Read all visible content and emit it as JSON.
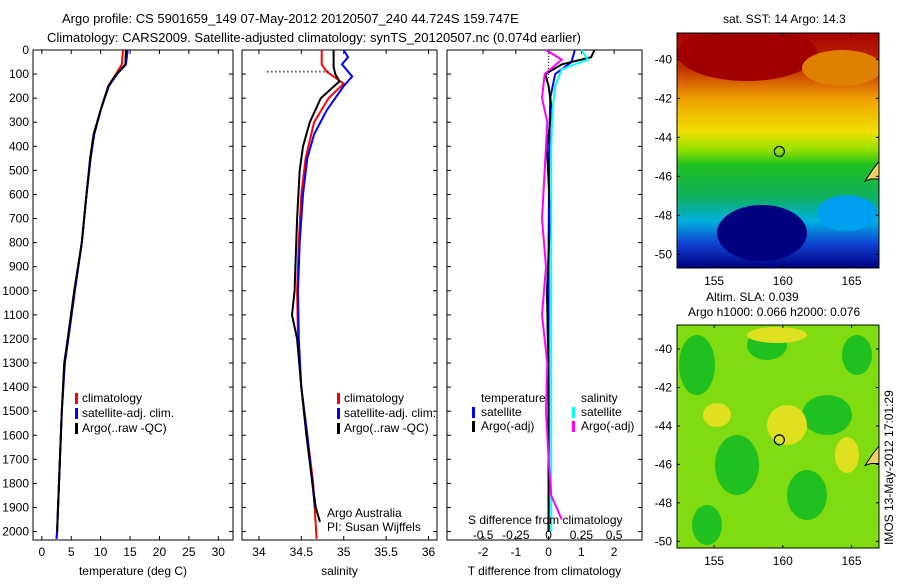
{
  "title_line1": "Argo profile: CS 5901659_149 07-May-2012 20120507_240 44.724S 159.747E",
  "title_line2": "Climatology: CARS2009. Satellite-adjusted climatology: synTS_20120507.nc (0.074d earlier)",
  "footer_stamp": "IMOS 13-May-2012 17:01:29",
  "colors": {
    "climatology": "#ff0000",
    "satellite": "#0000ff",
    "argo": "#000000",
    "sal_sat": "#00ffff",
    "sal_argo": "#ff00ff"
  },
  "chart_data": [
    {
      "type": "line",
      "name": "temperature",
      "xlabel": "temperature (deg C)",
      "xlim": [
        -1.5,
        32.5
      ],
      "ylim": [
        0,
        2035
      ],
      "xticks": [
        0,
        5,
        10,
        15,
        20,
        25,
        30
      ],
      "yticks": [
        0,
        100,
        200,
        300,
        400,
        500,
        600,
        700,
        800,
        900,
        1000,
        1100,
        1200,
        1300,
        1400,
        1500,
        1600,
        1700,
        1800,
        1900,
        2000
      ],
      "legend": [
        "climatology",
        "satellite-adj. clim.",
        "Argo(..raw -QC)"
      ],
      "series": [
        {
          "name": "climatology",
          "color": "#ff0000",
          "depth": [
            0,
            60,
            100,
            150,
            250,
            350,
            450,
            600,
            800,
            1000,
            1200,
            1300,
            1500,
            2000,
            2030
          ],
          "values": [
            13.8,
            13.6,
            12.6,
            11.3,
            10,
            8.9,
            8.3,
            7.6,
            6.8,
            5.6,
            4.5,
            3.9,
            3.4,
            2.6,
            2.5
          ]
        },
        {
          "name": "satellite-adj. clim.",
          "color": "#0000ff",
          "depth": [
            0,
            60,
            100,
            150,
            250,
            350,
            450,
            600,
            800,
            1000,
            1200,
            1300,
            1500,
            2000,
            2030
          ],
          "values": [
            14.6,
            14.3,
            12.8,
            11.4,
            10,
            8.9,
            8.3,
            7.6,
            6.8,
            5.6,
            4.5,
            3.9,
            3.4,
            2.6,
            2.5
          ]
        },
        {
          "name": "Argo(..raw -QC)",
          "color": "#000000",
          "depth": [
            0,
            60,
            100,
            150,
            250,
            350,
            450,
            600,
            800,
            1000,
            1200,
            1300,
            1500,
            2000
          ],
          "values": [
            14.3,
            14.2,
            12.7,
            11.3,
            10,
            8.8,
            8.2,
            7.6,
            6.8,
            5.5,
            4.4,
            3.8,
            3.4,
            2.6
          ]
        }
      ]
    },
    {
      "type": "line",
      "name": "salinity",
      "xlabel": "salinity",
      "xlim": [
        33.8,
        36.1
      ],
      "ylim": [
        0,
        2035
      ],
      "xticks": [
        34,
        34.5,
        35,
        35.5,
        36
      ],
      "legend": [
        "climatology",
        "satellite-adj. clim.",
        "Argo(..raw -QC)"
      ],
      "annotation": [
        "Argo Australia",
        "PI: Susan Wijffels"
      ],
      "series": [
        {
          "name": "climatology",
          "color": "#ff0000",
          "depth": [
            0,
            60,
            90,
            140,
            200,
            300,
            450,
            600,
            800,
            1000,
            1200,
            1400,
            1600,
            1800,
            2030
          ],
          "values": [
            34.74,
            34.74,
            34.8,
            35.0,
            34.82,
            34.65,
            34.55,
            34.5,
            34.47,
            34.45,
            34.46,
            34.5,
            34.57,
            34.64,
            34.68
          ]
        },
        {
          "name": "satellite-adj. clim.",
          "color": "#0000ff",
          "depth": [
            0,
            30,
            60,
            110,
            150,
            250,
            350,
            450,
            600,
            800,
            1000,
            1200,
            1400,
            1600,
            1800,
            1900
          ],
          "values": [
            35.0,
            35.05,
            34.98,
            35.1,
            35.0,
            34.8,
            34.65,
            34.57,
            34.52,
            34.48,
            34.46,
            34.47,
            34.5,
            34.57,
            34.63,
            34.66
          ]
        },
        {
          "name": "Argo(..raw -QC)",
          "color": "#000000",
          "depth": [
            0,
            70,
            100,
            130,
            200,
            300,
            400,
            500,
            700,
            900,
            1000,
            1100,
            1200,
            1400,
            1600,
            1800,
            1900,
            1960
          ],
          "values": [
            34.88,
            34.88,
            34.9,
            34.95,
            34.73,
            34.6,
            34.52,
            34.48,
            34.45,
            34.43,
            34.42,
            34.39,
            34.45,
            34.5,
            34.56,
            34.63,
            34.67,
            34.72
          ]
        }
      ]
    },
    {
      "type": "line",
      "name": "difference",
      "xlabel": "T difference from climatology",
      "x2label": "S difference from climatology",
      "xlim": [
        -3.1,
        2.85
      ],
      "ylim": [
        0,
        2035
      ],
      "xticks": [
        -2,
        -1,
        0,
        1,
        2
      ],
      "x2ticks": [
        -0.5,
        -0.25,
        0,
        0.25,
        0.5
      ],
      "legend_temperature": {
        "title": "temperature",
        "items": [
          "satellite",
          "Argo(-adj)"
        ]
      },
      "legend_salinity": {
        "title": "salinity",
        "items": [
          "satellite",
          "Argo(-adj)"
        ]
      },
      "series": [
        {
          "name": "T satellite",
          "color": "#0000ff",
          "depth": [
            0,
            50,
            100,
            200,
            400,
            800,
            1200,
            1600,
            2000
          ],
          "values": [
            0.8,
            0.7,
            0.2,
            0.05,
            0.02,
            0.0,
            0.0,
            0.0,
            0.0
          ]
        },
        {
          "name": "T Argo(-adj)",
          "color": "#000000",
          "depth": [
            0,
            30,
            60,
            100,
            150,
            250,
            400,
            700,
            1000,
            1400,
            1800,
            2000
          ],
          "values": [
            1.4,
            1.3,
            0.4,
            -0.1,
            0.0,
            0.1,
            -0.05,
            0.05,
            -0.05,
            0.0,
            0.0,
            0.0
          ]
        },
        {
          "name": "S satellite",
          "color": "#00ffff",
          "depth": [
            0,
            40,
            80,
            150,
            250,
            400,
            800,
            1200,
            1600,
            2000
          ],
          "values": [
            0.25,
            0.3,
            0.1,
            0.05,
            0.03,
            0.02,
            0.02,
            0.02,
            0.02,
            0.02
          ]
        },
        {
          "name": "S Argo(-adj)",
          "color": "#ff00ff",
          "depth": [
            0,
            40,
            100,
            200,
            300,
            500,
            700,
            900,
            1100,
            1300,
            1500,
            1700,
            1850,
            1900,
            1950
          ],
          "values": [
            -0.02,
            0.1,
            -0.03,
            -0.05,
            -0.01,
            -0.03,
            -0.05,
            -0.02,
            -0.05,
            -0.01,
            -0.02,
            0.0,
            0.02,
            0.06,
            0.1
          ]
        }
      ]
    },
    {
      "type": "heatmap",
      "name": "sst-map",
      "title": "sat. SST: 14 Argo: 14.3",
      "xlim": [
        152.3,
        167
      ],
      "ylim": [
        -50.7,
        -38.65
      ],
      "xticks": [
        155,
        160,
        165
      ],
      "yticks": [
        -40,
        -42,
        -44,
        -46,
        -48,
        -50
      ],
      "marker": {
        "lon": 159.747,
        "lat": -44.724
      }
    },
    {
      "type": "heatmap",
      "name": "sla-map",
      "title_line1": "Altim. SLA: 0.039",
      "title_line2": "Argo h1000: 0.066 h2000: 0.076",
      "xlim": [
        152.3,
        167
      ],
      "ylim": [
        -50.35,
        -38.75
      ],
      "xticks": [
        155,
        160,
        165
      ],
      "yticks": [
        -40,
        -42,
        -44,
        -46,
        -48,
        -50
      ],
      "marker": {
        "lon": 159.747,
        "lat": -44.724
      }
    }
  ]
}
